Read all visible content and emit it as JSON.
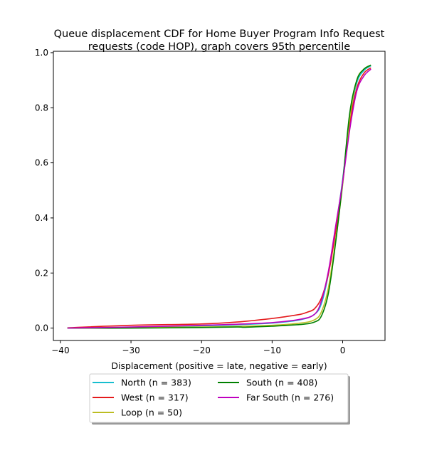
{
  "chart_data": {
    "type": "line",
    "title": "Queue displacement CDF for Home Buyer Program Info Request",
    "subtitle": "requests (code HOP), graph covers 95th percentile",
    "xlabel": "Displacement (positive = late, negative = early)",
    "ylabel": "",
    "xlim": [
      -41,
      6
    ],
    "ylim": [
      -0.045,
      1.005
    ],
    "xticks": [
      -40,
      -30,
      -20,
      -10,
      0
    ],
    "xtick_labels": [
      "−40",
      "−30",
      "−20",
      "−10",
      "0"
    ],
    "yticks": [
      0.0,
      0.2,
      0.4,
      0.6,
      0.8,
      1.0
    ],
    "ytick_labels": [
      "0.0",
      "0.2",
      "0.4",
      "0.6",
      "0.8",
      "1.0"
    ],
    "grid": false,
    "legend_position": "below the plot, two columns",
    "series": [
      {
        "name": "North (n = 383)",
        "color": "#17becf",
        "x": [
          -39,
          -30,
          -20,
          -15,
          -10,
          -6,
          -4,
          -3,
          -2,
          -1,
          0,
          1,
          2,
          3,
          4
        ],
        "y": [
          0.0,
          0.003,
          0.008,
          0.012,
          0.018,
          0.03,
          0.05,
          0.09,
          0.2,
          0.36,
          0.54,
          0.76,
          0.89,
          0.935,
          0.952
        ]
      },
      {
        "name": "West (n = 317)",
        "color": "#e41a1c",
        "x": [
          -39,
          -30,
          -20,
          -15,
          -10,
          -8,
          -6,
          -5,
          -4,
          -3,
          -2,
          -1,
          0,
          1,
          2,
          3,
          4
        ],
        "y": [
          0.001,
          0.01,
          0.015,
          0.022,
          0.035,
          0.042,
          0.05,
          0.058,
          0.07,
          0.11,
          0.2,
          0.35,
          0.53,
          0.74,
          0.87,
          0.925,
          0.945
        ]
      },
      {
        "name": "Loop (n = 50)",
        "color": "#bcbd22",
        "x": [
          -39,
          -30,
          -20,
          -15,
          -10,
          -6,
          -4,
          -3,
          -2,
          -1,
          0,
          1,
          2,
          3,
          4
        ],
        "y": [
          0.0,
          0.002,
          0.004,
          0.006,
          0.01,
          0.018,
          0.03,
          0.06,
          0.15,
          0.32,
          0.52,
          0.76,
          0.9,
          0.94,
          0.955
        ]
      },
      {
        "name": "South (n = 408)",
        "color": "#008000",
        "x": [
          -39,
          -30,
          -20,
          -15,
          -14,
          -12,
          -10,
          -6,
          -4,
          -3,
          -2,
          -1,
          0,
          1,
          2,
          3,
          4
        ],
        "y": [
          0.0,
          0.0,
          0.002,
          0.004,
          0.003,
          0.005,
          0.007,
          0.013,
          0.022,
          0.045,
          0.13,
          0.31,
          0.53,
          0.78,
          0.9,
          0.94,
          0.955
        ]
      },
      {
        "name": "Far South (n = 276)",
        "color": "#bf00bf",
        "x": [
          -39,
          -30,
          -20,
          -15,
          -10,
          -6,
          -4,
          -3,
          -2,
          -1,
          0,
          1,
          2,
          3,
          4
        ],
        "y": [
          0.0,
          0.004,
          0.01,
          0.014,
          0.02,
          0.032,
          0.05,
          0.1,
          0.21,
          0.37,
          0.53,
          0.72,
          0.86,
          0.915,
          0.94
        ]
      }
    ]
  }
}
